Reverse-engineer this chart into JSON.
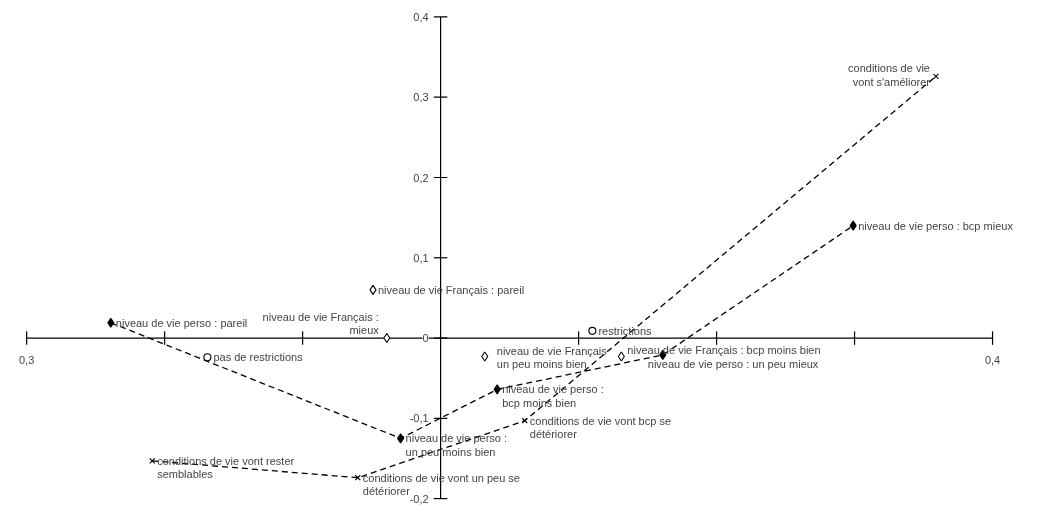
{
  "chart_data": {
    "type": "line",
    "xlim": [
      -0.3,
      0.4
    ],
    "ylim": [
      -0.2,
      0.4
    ],
    "xticks": [
      {
        "value": -0.3,
        "label": "0,3"
      },
      {
        "value": -0.2,
        "label": null
      },
      {
        "value": -0.1,
        "label": null
      },
      {
        "value": 0.1,
        "label": null
      },
      {
        "value": 0.2,
        "label": null
      },
      {
        "value": 0.3,
        "label": null
      },
      {
        "value": 0.4,
        "label": "0,4"
      }
    ],
    "yticks": [
      {
        "value": -0.2,
        "label": "-0,2"
      },
      {
        "value": -0.1,
        "label": "-0,1"
      },
      {
        "value": 0,
        "label": "0"
      },
      {
        "value": 0.1,
        "label": "0,1"
      },
      {
        "value": 0.2,
        "label": "0,2"
      },
      {
        "value": 0.3,
        "label": "0,3"
      },
      {
        "value": 0.4,
        "label": "0,4"
      }
    ],
    "grid": false,
    "series": [
      {
        "color": "#000000",
        "marker": "diamond",
        "line_style": "dashed",
        "x": [
          -0.239,
          -0.029,
          0.041,
          0.161,
          0.299
        ],
        "values": [
          0.019,
          -0.125,
          -0.064,
          -0.021,
          0.14
        ]
      },
      {
        "color": "#000000",
        "marker": "cross",
        "line_style": "dashed",
        "x": [
          -0.209,
          -0.06,
          0.061,
          0.359
        ],
        "values": [
          -0.153,
          -0.174,
          -0.103,
          0.326
        ]
      },
      {
        "type": "scatter",
        "color": "#000000",
        "marker": "diamond",
        "x": [
          -0.049,
          -0.039,
          0.032,
          0.131
        ],
        "values": [
          0.06,
          0.0,
          -0.023,
          -0.023
        ]
      },
      {
        "type": "scatter",
        "color": "#000000",
        "marker": "circle",
        "x": [
          0.11,
          -0.169
        ],
        "values": [
          0.009,
          -0.024
        ]
      }
    ],
    "annotations": [
      {
        "text": "niveau de vie perso : pareil",
        "x": -0.239,
        "y": 0.019
      },
      {
        "text": "niveau de vie perso :\nun peu moins bien",
        "x": -0.029,
        "y": -0.125
      },
      {
        "text": "niveau de vie perso :\nbcp moins bien",
        "x": 0.041,
        "y": -0.064
      },
      {
        "text": "niveau de vie perso : un peu mieux",
        "x": 0.161,
        "y": -0.021
      },
      {
        "text": "niveau de vie perso : bcp mieux",
        "x": 0.299,
        "y": 0.14
      },
      {
        "text": "conditions de vie vont rester\nsemblables",
        "x": -0.209,
        "y": -0.153
      },
      {
        "text": "conditions de vie vont un peu se\ndétériorer",
        "x": -0.06,
        "y": -0.174
      },
      {
        "text": "conditions de vie vont bcp se\ndétériorer",
        "x": 0.061,
        "y": -0.103
      },
      {
        "text": "conditions de vie\nvont s'améliorer",
        "x": 0.359,
        "y": 0.326
      },
      {
        "text": "niveau de vie Français : pareil",
        "x": -0.049,
        "y": 0.06
      },
      {
        "text": "niveau de vie Français :\nmieux",
        "x": -0.039,
        "y": 0.0
      },
      {
        "text": "niveau de vie Français\nun peu moins bien",
        "x": 0.032,
        "y": -0.023
      },
      {
        "text": "niveau de vie Français : bcp moins bien",
        "x": 0.131,
        "y": -0.023
      },
      {
        "text": "restrictions",
        "x": 0.11,
        "y": 0.009
      },
      {
        "text": "pas de restrictions",
        "x": -0.169,
        "y": -0.024
      }
    ]
  }
}
